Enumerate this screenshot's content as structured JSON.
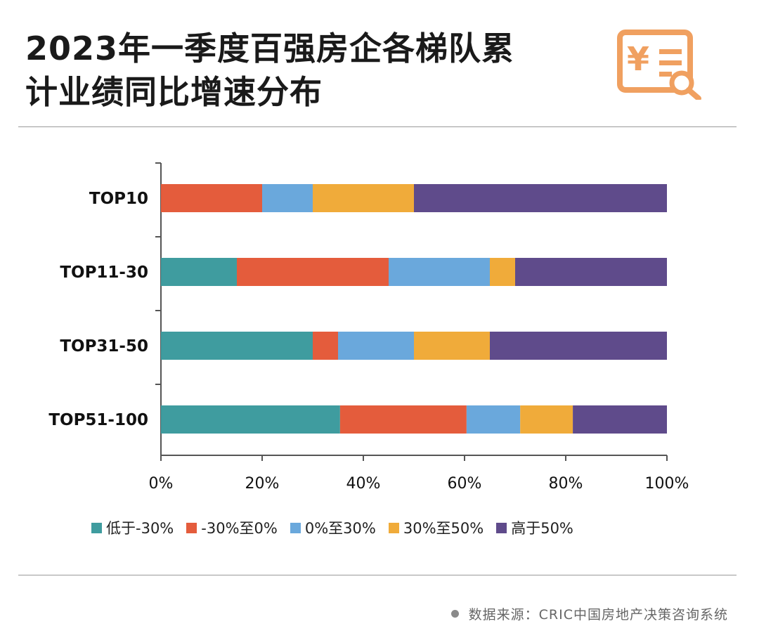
{
  "header": {
    "title_line1": "2023年一季度百强房企各梯队累",
    "title_line2": "计业绩同比增速分布"
  },
  "logo_icon": "yuan-receipt-search-icon",
  "colors": {
    "accent": "#f0a060",
    "axis": "#555555"
  },
  "chart_data": {
    "type": "bar",
    "orientation": "horizontal",
    "stacked": true,
    "percent": true,
    "categories": [
      "TOP10",
      "TOP11-30",
      "TOP31-50",
      "TOP51-100"
    ],
    "series": [
      {
        "name": "低于-30%",
        "color": "#3f9c9f",
        "values": [
          0,
          15,
          30,
          35.4
        ]
      },
      {
        "name": "-30%至0%",
        "color": "#e45c3c",
        "values": [
          20,
          30,
          5,
          25
        ]
      },
      {
        "name": "0%至30%",
        "color": "#6aa8dc",
        "values": [
          10,
          20,
          15,
          10.6
        ]
      },
      {
        "name": "30%至50%",
        "color": "#f0ab3a",
        "values": [
          20,
          5,
          15,
          10.4
        ]
      },
      {
        "name": "高于50%",
        "color": "#5f4b8b",
        "values": [
          50,
          30,
          35,
          18.6
        ]
      }
    ],
    "xlim": [
      0,
      100
    ],
    "xticks": [
      "0%",
      "20%",
      "40%",
      "60%",
      "80%",
      "100%"
    ],
    "xlabel": "",
    "ylabel": "",
    "grid": false,
    "legend": "bottom"
  },
  "source": {
    "text": "数据来源：CRIC中国房地产决策咨询系统"
  }
}
